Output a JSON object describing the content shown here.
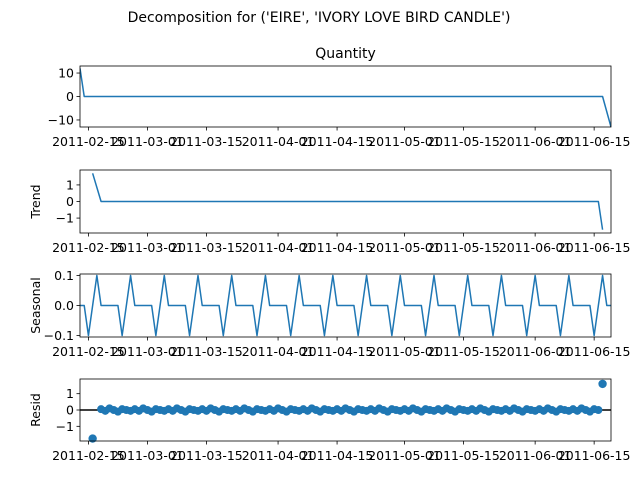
{
  "suptitle": "Decomposition for ('EIRE', 'IVORY LOVE BIRD CANDLE')",
  "chart_data": [
    {
      "type": "line",
      "name": "observed",
      "title": "Quantity",
      "ylabel": "",
      "xlim": [
        "2011-02-13",
        "2011-06-19"
      ],
      "ylim": [
        -13,
        13
      ],
      "yticks": [
        10,
        0,
        -10
      ],
      "xticks": [
        "2011-02-15",
        "2011-03-01",
        "2011-03-15",
        "2011-04-01",
        "2011-04-15",
        "2011-05-01",
        "2011-05-15",
        "2011-06-01",
        "2011-06-15"
      ],
      "points": [
        [
          "2011-02-13",
          12
        ],
        [
          "2011-02-14",
          0
        ],
        [
          "2011-06-17",
          0
        ],
        [
          "2011-06-19",
          -13
        ]
      ]
    },
    {
      "type": "line",
      "name": "trend",
      "title": "",
      "ylabel": "Trend",
      "xlim": [
        "2011-02-13",
        "2011-06-19"
      ],
      "ylim": [
        -1.9,
        1.9
      ],
      "yticks": [
        1,
        0,
        -1
      ],
      "xticks": [
        "2011-02-15",
        "2011-03-01",
        "2011-03-15",
        "2011-04-01",
        "2011-04-15",
        "2011-05-01",
        "2011-05-15",
        "2011-06-01",
        "2011-06-15"
      ],
      "points": [
        [
          "2011-02-16",
          1.7
        ],
        [
          "2011-02-18",
          0
        ],
        [
          "2011-06-16",
          0
        ],
        [
          "2011-06-17",
          -1.7
        ]
      ]
    },
    {
      "type": "line",
      "name": "seasonal",
      "title": "",
      "ylabel": "Seasonal",
      "xlim": [
        "2011-02-13",
        "2011-06-19"
      ],
      "ylim": [
        -0.105,
        0.105
      ],
      "yticks": [
        0.1,
        0.0,
        -0.1
      ],
      "yticklabels": [
        "0.1",
        "0.0",
        "−0.1"
      ],
      "xticks": [
        "2011-02-15",
        "2011-03-01",
        "2011-03-15",
        "2011-04-01",
        "2011-04-15",
        "2011-05-01",
        "2011-05-15",
        "2011-06-01",
        "2011-06-15"
      ],
      "start": "2011-02-13",
      "end": "2011-06-19",
      "period_pattern": [
        0,
        0,
        -0.1,
        0,
        0.1,
        0,
        0,
        0
      ]
    },
    {
      "type": "scatter",
      "name": "resid",
      "title": "",
      "ylabel": "Resid",
      "xlim": [
        "2011-02-13",
        "2011-06-19"
      ],
      "ylim": [
        -1.9,
        1.9
      ],
      "yticks": [
        1,
        0,
        -1
      ],
      "yticklabels": [
        "1",
        "0",
        "−1"
      ],
      "xticks": [
        "2011-02-15",
        "2011-03-01",
        "2011-03-15",
        "2011-04-01",
        "2011-04-15",
        "2011-05-01",
        "2011-05-15",
        "2011-06-01",
        "2011-06-15"
      ],
      "outliers": [
        [
          "2011-02-16",
          -1.75
        ],
        [
          "2011-06-17",
          1.6
        ]
      ],
      "near_zero_start": "2011-02-18",
      "near_zero_end": "2011-06-16",
      "near_zero_pattern": [
        0.05,
        -0.05,
        0.1,
        0,
        -0.1,
        0.05,
        0,
        -0.05
      ],
      "zero_line": true
    }
  ]
}
